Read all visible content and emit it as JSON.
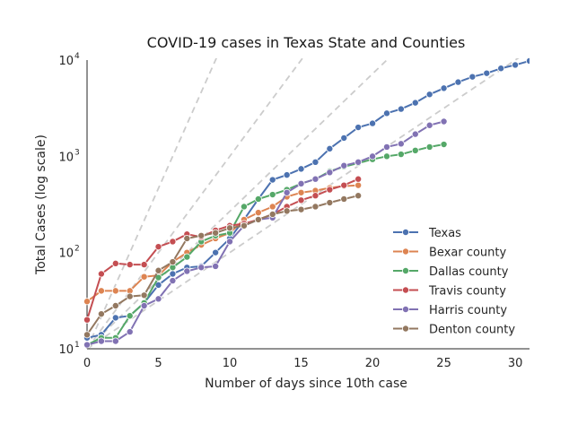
{
  "chart_data": {
    "type": "line",
    "title": "COVID-19 cases in Texas State and Counties",
    "xlabel": "Number of days since 10th case",
    "ylabel": "Total Cases (log scale)",
    "xlim": [
      0,
      31
    ],
    "ylim": [
      10,
      10000
    ],
    "yscale": "log",
    "x_ticks": [
      0,
      5,
      10,
      15,
      20,
      25,
      30
    ],
    "y_ticks": [
      {
        "value": 10,
        "base": "10",
        "exp": "1"
      },
      {
        "value": 100,
        "base": "10",
        "exp": "2"
      },
      {
        "value": 1000,
        "base": "10",
        "exp": "3"
      },
      {
        "value": 10000,
        "base": "10",
        "exp": "4"
      }
    ],
    "grid": false,
    "legend_position": "lower-right",
    "series": [
      {
        "name": "Texas",
        "color": "#4c72b0",
        "x": [
          0,
          1,
          2,
          3,
          4,
          5,
          6,
          7,
          8,
          9,
          10,
          11,
          12,
          13,
          14,
          15,
          16,
          17,
          18,
          19,
          20,
          21,
          22,
          23,
          24,
          25,
          26,
          27,
          28,
          29,
          30,
          31
        ],
        "y": [
          13,
          14,
          21,
          22,
          30,
          46,
          60,
          70,
          72,
          100,
          140,
          220,
          360,
          570,
          640,
          740,
          870,
          1200,
          1550,
          2000,
          2200,
          2800,
          3100,
          3600,
          4400,
          5100,
          5900,
          6700,
          7300,
          8200,
          8900,
          9800
        ]
      },
      {
        "name": "Bexar county",
        "color": "#dd8452",
        "x": [
          0,
          1,
          2,
          3,
          4,
          5,
          6,
          7,
          8,
          9,
          10,
          11,
          12,
          13,
          14,
          15,
          16,
          17,
          18,
          19
        ],
        "y": [
          31,
          40,
          40,
          40,
          56,
          58,
          80,
          100,
          120,
          140,
          160,
          220,
          260,
          300,
          380,
          420,
          440,
          470,
          490,
          500
        ]
      },
      {
        "name": "Dallas county",
        "color": "#55a868",
        "x": [
          0,
          1,
          2,
          3,
          4,
          5,
          6,
          7,
          8,
          9,
          10,
          11,
          12,
          13,
          14,
          15,
          16,
          17,
          18,
          19,
          20,
          21,
          22,
          23,
          24,
          25
        ],
        "y": [
          11,
          13,
          13,
          22,
          30,
          55,
          70,
          90,
          130,
          150,
          160,
          300,
          360,
          400,
          450,
          520,
          580,
          700,
          780,
          850,
          930,
          1000,
          1050,
          1150,
          1250,
          1330
        ]
      },
      {
        "name": "Travis county",
        "color": "#c44e52",
        "x": [
          0,
          1,
          2,
          3,
          4,
          5,
          6,
          7,
          8,
          9,
          10,
          11,
          12,
          13,
          14,
          15,
          16,
          17,
          18,
          19
        ],
        "y": [
          20,
          60,
          77,
          75,
          75,
          115,
          130,
          155,
          145,
          170,
          190,
          200,
          220,
          250,
          300,
          350,
          390,
          450,
          500,
          580
        ]
      },
      {
        "name": "Harris county",
        "color": "#8172b3",
        "x": [
          0,
          1,
          2,
          3,
          4,
          5,
          6,
          7,
          8,
          9,
          10,
          11,
          12,
          13,
          14,
          15,
          16,
          17,
          18,
          19,
          20,
          21,
          22,
          23,
          24,
          25
        ],
        "y": [
          11,
          12,
          12,
          15,
          28,
          33,
          51,
          64,
          70,
          72,
          130,
          190,
          220,
          230,
          420,
          520,
          580,
          680,
          800,
          870,
          1000,
          1250,
          1350,
          1700,
          2100,
          2300
        ]
      },
      {
        "name": "Denton county",
        "color": "#937860",
        "x": [
          0,
          1,
          2,
          3,
          4,
          5,
          6,
          7,
          8,
          9,
          10,
          11,
          12,
          13,
          14,
          15,
          16,
          17,
          18,
          19
        ],
        "y": [
          14,
          23,
          28,
          35,
          36,
          65,
          80,
          140,
          150,
          160,
          180,
          190,
          220,
          250,
          270,
          280,
          300,
          330,
          360,
          390
        ]
      }
    ]
  }
}
